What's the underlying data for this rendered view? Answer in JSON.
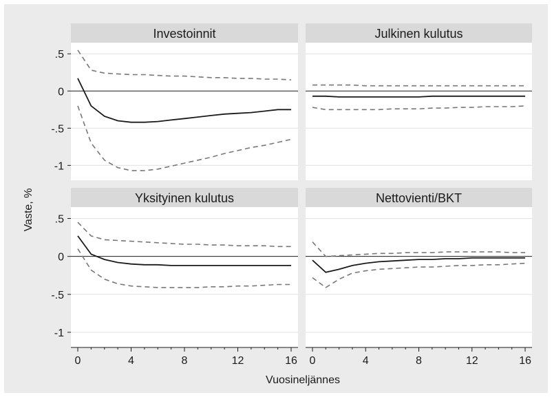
{
  "chart_data": {
    "type": "line",
    "xlabel": "Vuosineljännes",
    "ylabel": "Vaste, %",
    "xlim": [
      0,
      16
    ],
    "ylim": [
      -1.2,
      0.65
    ],
    "x_ticks": [
      0,
      4,
      8,
      12,
      16
    ],
    "x_tick_labels": [
      "0",
      "4",
      "8",
      "12",
      "16"
    ],
    "y_ticks": [
      0.5,
      0,
      -0.5,
      -1
    ],
    "y_tick_labels": [
      ".5",
      "0",
      "-.5",
      "-1"
    ],
    "grid": true,
    "zero_line": true,
    "colors": {
      "background": "#ebebeb",
      "plot": "#ffffff",
      "strip": "#d9d9d9",
      "response": "#1a1a1a",
      "band": "#777777",
      "grid": "#e6e6e6"
    },
    "x": [
      0,
      1,
      2,
      3,
      4,
      5,
      6,
      7,
      8,
      9,
      10,
      11,
      12,
      13,
      14,
      15,
      16
    ],
    "panels": [
      {
        "title": "Investoinnit",
        "response": [
          0.17,
          -0.2,
          -0.34,
          -0.4,
          -0.42,
          -0.42,
          -0.41,
          -0.39,
          -0.37,
          -0.35,
          -0.33,
          -0.31,
          -0.3,
          -0.29,
          -0.27,
          -0.25,
          -0.25
        ],
        "upper": [
          0.55,
          0.28,
          0.24,
          0.23,
          0.22,
          0.22,
          0.21,
          0.2,
          0.2,
          0.19,
          0.18,
          0.18,
          0.17,
          0.17,
          0.16,
          0.16,
          0.15
        ],
        "lower": [
          -0.2,
          -0.7,
          -0.93,
          -1.03,
          -1.07,
          -1.07,
          -1.05,
          -1.01,
          -0.97,
          -0.93,
          -0.89,
          -0.84,
          -0.8,
          -0.76,
          -0.73,
          -0.69,
          -0.65
        ]
      },
      {
        "title": "Julkinen kulutus",
        "response": [
          -0.07,
          -0.07,
          -0.08,
          -0.08,
          -0.08,
          -0.08,
          -0.08,
          -0.08,
          -0.08,
          -0.07,
          -0.07,
          -0.07,
          -0.07,
          -0.07,
          -0.07,
          -0.07,
          -0.07
        ],
        "upper": [
          0.08,
          0.08,
          0.08,
          0.08,
          0.07,
          0.07,
          0.07,
          0.07,
          0.07,
          0.07,
          0.07,
          0.07,
          0.07,
          0.07,
          0.07,
          0.07,
          0.07
        ],
        "lower": [
          -0.22,
          -0.25,
          -0.25,
          -0.25,
          -0.25,
          -0.25,
          -0.24,
          -0.24,
          -0.24,
          -0.23,
          -0.23,
          -0.22,
          -0.22,
          -0.21,
          -0.21,
          -0.21,
          -0.2
        ]
      },
      {
        "title": "Yksityinen kulutus",
        "response": [
          0.27,
          0.03,
          -0.04,
          -0.08,
          -0.1,
          -0.11,
          -0.11,
          -0.12,
          -0.12,
          -0.12,
          -0.12,
          -0.12,
          -0.12,
          -0.12,
          -0.12,
          -0.12,
          -0.12
        ],
        "upper": [
          0.45,
          0.27,
          0.22,
          0.21,
          0.2,
          0.19,
          0.18,
          0.17,
          0.16,
          0.16,
          0.15,
          0.15,
          0.14,
          0.14,
          0.14,
          0.13,
          0.13
        ],
        "lower": [
          0.1,
          -0.18,
          -0.3,
          -0.36,
          -0.39,
          -0.4,
          -0.41,
          -0.41,
          -0.41,
          -0.41,
          -0.4,
          -0.4,
          -0.39,
          -0.39,
          -0.38,
          -0.37,
          -0.37
        ]
      },
      {
        "title": "Nettovienti/BKT",
        "response": [
          -0.05,
          -0.21,
          -0.17,
          -0.12,
          -0.09,
          -0.07,
          -0.06,
          -0.05,
          -0.04,
          -0.04,
          -0.03,
          -0.03,
          -0.02,
          -0.02,
          -0.02,
          -0.02,
          -0.02
        ],
        "upper": [
          0.19,
          0.0,
          0.01,
          0.02,
          0.03,
          0.04,
          0.04,
          0.05,
          0.05,
          0.05,
          0.06,
          0.06,
          0.06,
          0.06,
          0.06,
          0.05,
          0.05
        ],
        "lower": [
          -0.28,
          -0.41,
          -0.3,
          -0.22,
          -0.19,
          -0.17,
          -0.16,
          -0.15,
          -0.14,
          -0.14,
          -0.13,
          -0.12,
          -0.12,
          -0.11,
          -0.11,
          -0.1,
          -0.09
        ]
      }
    ]
  }
}
